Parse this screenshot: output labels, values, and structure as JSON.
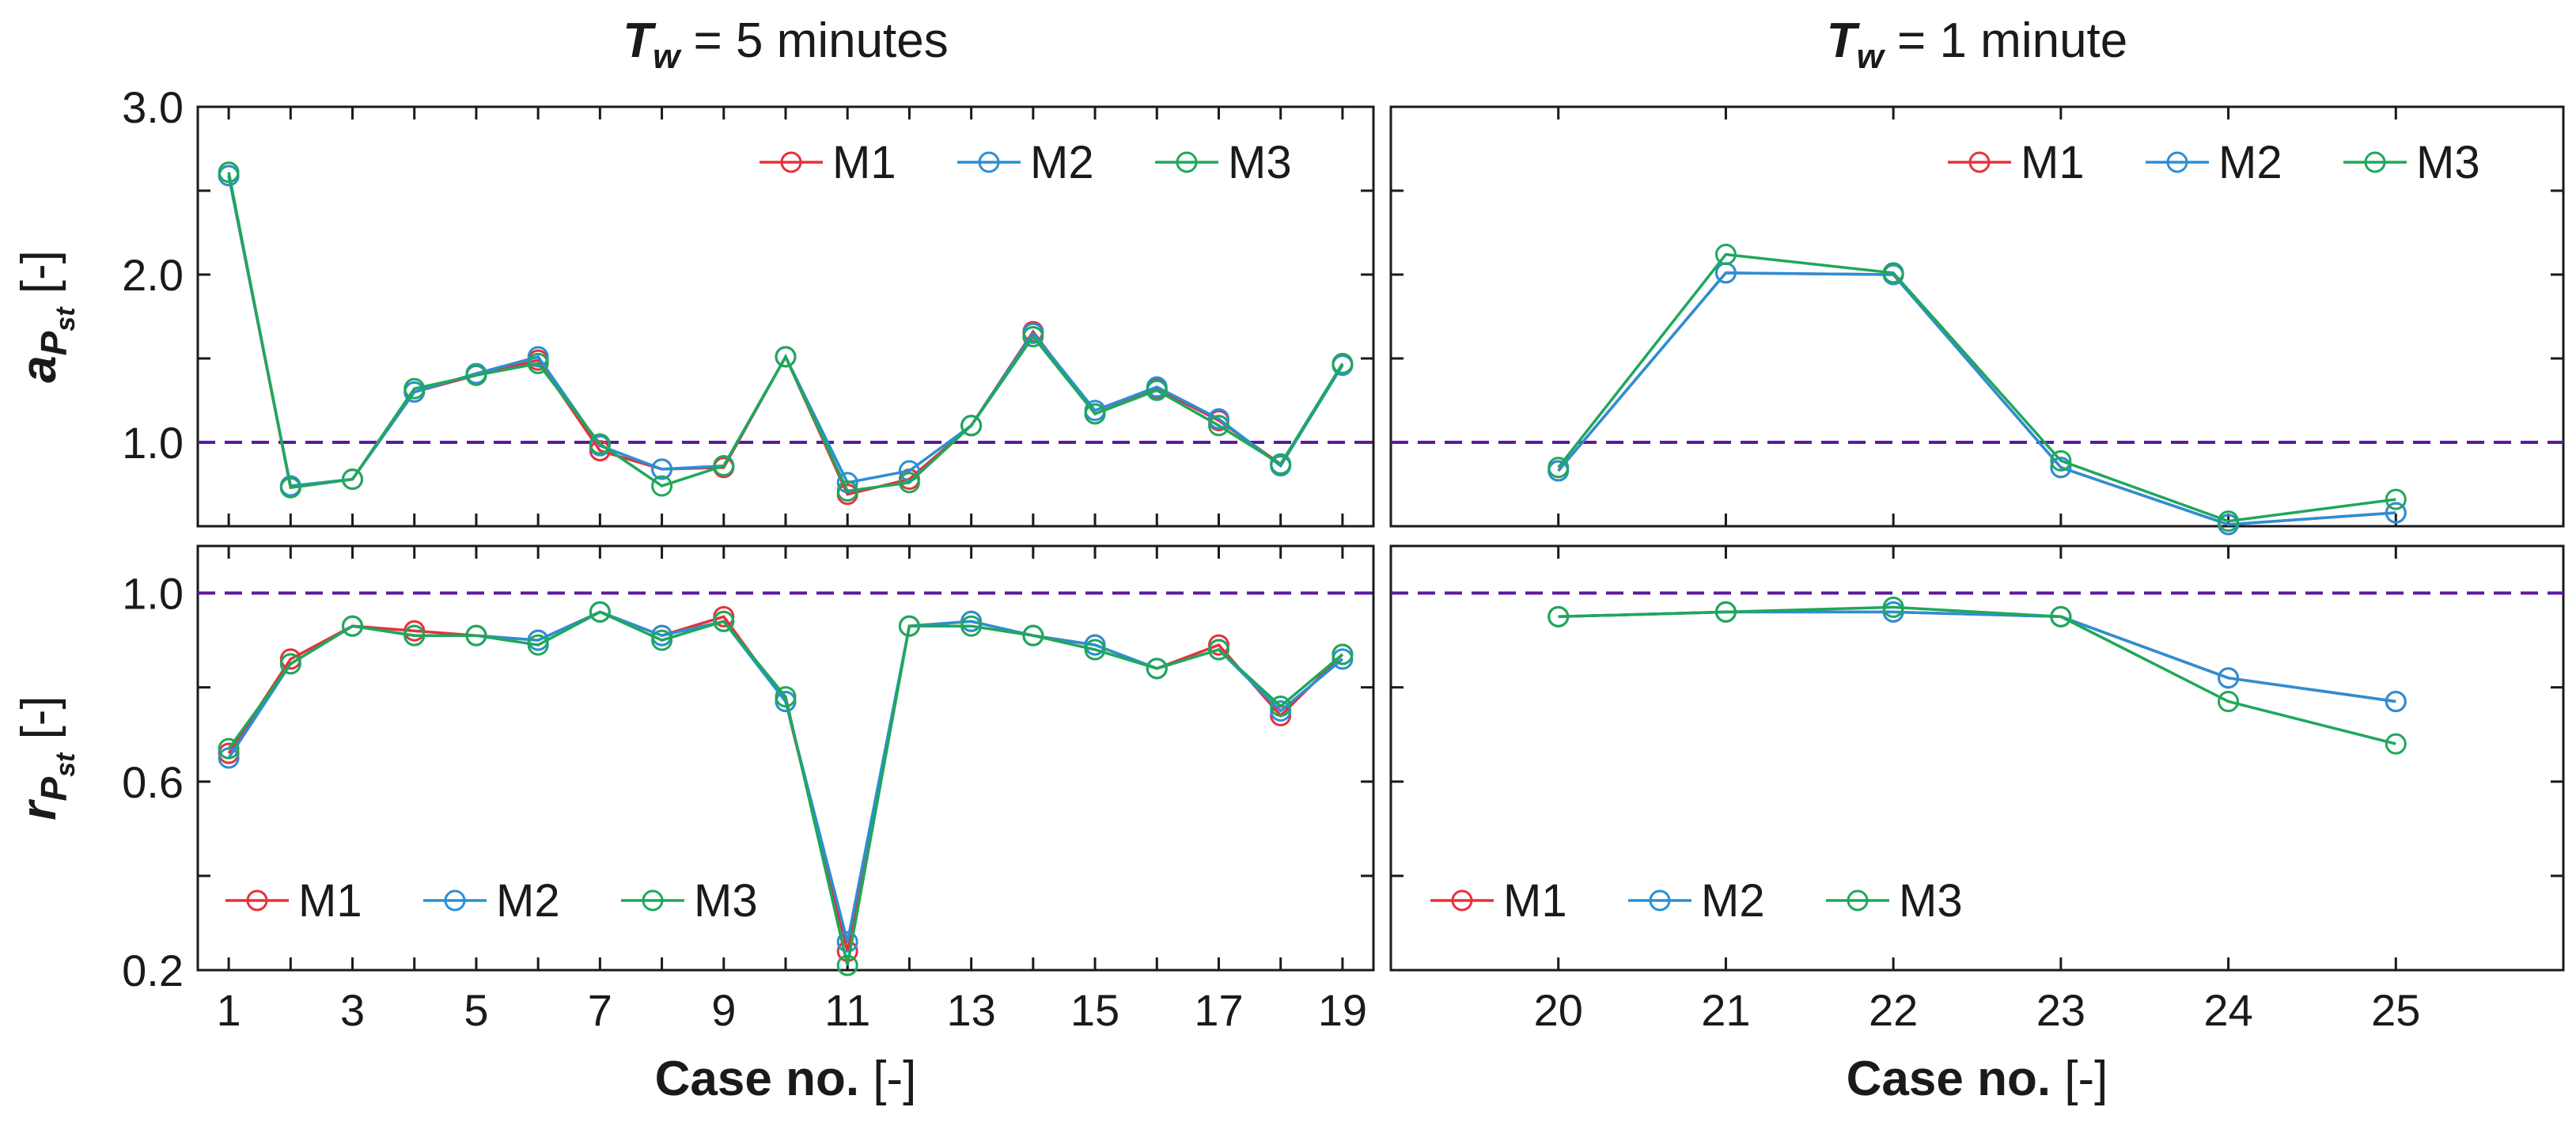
{
  "chart_data": [
    {
      "id": "top-left",
      "type": "line",
      "column_title": {
        "symbol": "T",
        "subscript": "w",
        "text": " = 5 minutes"
      },
      "ylabel": {
        "symbol": "a",
        "sub": "P",
        "subsub": "st",
        "unit": " [-]"
      },
      "xlabel": "",
      "ylim": [
        0.5,
        3.0
      ],
      "xlim": [
        0.5,
        19.5
      ],
      "yticks": [
        1.0,
        2.0,
        3.0
      ],
      "ytick_labels": [
        "1.0",
        "2.0",
        "3.0"
      ],
      "xticks": [
        1,
        2,
        3,
        4,
        5,
        6,
        7,
        8,
        9,
        10,
        11,
        12,
        13,
        14,
        15,
        16,
        17,
        18,
        19
      ],
      "xtick_labels": [],
      "reference_line": 1.0,
      "legend": {
        "placement": "top-right"
      },
      "x": [
        1,
        2,
        3,
        4,
        5,
        6,
        7,
        8,
        9,
        10,
        11,
        12,
        13,
        14,
        15,
        16,
        17,
        18,
        19
      ],
      "series": [
        {
          "name": "M1",
          "color": "#e8303a",
          "values": [
            2.59,
            0.73,
            0.78,
            1.3,
            1.4,
            1.49,
            0.95,
            0.84,
            0.85,
            1.51,
            0.69,
            0.78,
            1.1,
            1.66,
            1.17,
            1.32,
            1.13,
            0.87,
            1.46
          ]
        },
        {
          "name": "M2",
          "color": "#2b8fd6",
          "values": [
            2.59,
            0.74,
            0.78,
            1.3,
            1.41,
            1.51,
            0.98,
            0.84,
            0.86,
            1.51,
            0.76,
            0.83,
            1.1,
            1.65,
            1.19,
            1.33,
            1.14,
            0.86,
            1.46
          ]
        },
        {
          "name": "M3",
          "color": "#1fa85a",
          "values": [
            2.61,
            0.73,
            0.78,
            1.32,
            1.4,
            1.47,
            0.99,
            0.74,
            0.86,
            1.51,
            0.71,
            0.76,
            1.1,
            1.63,
            1.17,
            1.31,
            1.1,
            0.87,
            1.47
          ]
        }
      ]
    },
    {
      "id": "top-right",
      "type": "line",
      "column_title": {
        "symbol": "T",
        "subscript": "w",
        "text": " = 1 minute"
      },
      "xlabel": "",
      "ylim": [
        0.5,
        3.0
      ],
      "xlim": [
        19.0,
        26.0
      ],
      "yticks": [
        1.0,
        2.0,
        3.0
      ],
      "ytick_labels": [],
      "xticks": [
        20,
        21,
        22,
        23,
        24,
        25
      ],
      "xtick_labels": [],
      "reference_line": 1.0,
      "legend": {
        "placement": "top-right"
      },
      "x": [
        20,
        21,
        22,
        23,
        24,
        25
      ],
      "series": [
        {
          "name": "M1",
          "color": "#e8303a",
          "values": [
            0.83,
            2.01,
            2.0,
            0.85,
            0.51,
            0.58
          ]
        },
        {
          "name": "M2",
          "color": "#2b8fd6",
          "values": [
            0.83,
            2.01,
            2.0,
            0.85,
            0.51,
            0.58
          ]
        },
        {
          "name": "M3",
          "color": "#1fa85a",
          "values": [
            0.85,
            2.12,
            2.01,
            0.89,
            0.53,
            0.66
          ]
        }
      ]
    },
    {
      "id": "bottom-left",
      "type": "line",
      "ylabel": {
        "symbol": "r",
        "sub": "P",
        "subsub": "st",
        "unit": " [-]"
      },
      "xlabel": "Case no. [-]",
      "ylim": [
        0.2,
        1.1
      ],
      "xlim": [
        0.5,
        19.5
      ],
      "yticks": [
        0.2,
        0.6,
        1.0
      ],
      "ytick_labels": [
        "0.2",
        "0.6",
        "1.0"
      ],
      "xticks": [
        1,
        2,
        3,
        4,
        5,
        6,
        7,
        8,
        9,
        10,
        11,
        12,
        13,
        14,
        15,
        16,
        17,
        18,
        19
      ],
      "xtick_labels": [
        "1",
        "",
        "3",
        "",
        "5",
        "",
        "7",
        "",
        "9",
        "",
        "11",
        "",
        "13",
        "",
        "15",
        "",
        "17",
        "",
        "19"
      ],
      "reference_line": 1.0,
      "legend": {
        "placement": "bottom-left"
      },
      "x": [
        1,
        2,
        3,
        4,
        5,
        6,
        7,
        8,
        9,
        10,
        11,
        12,
        13,
        14,
        15,
        16,
        17,
        18,
        19
      ],
      "series": [
        {
          "name": "M1",
          "color": "#e8303a",
          "values": [
            0.66,
            0.86,
            0.93,
            0.92,
            0.91,
            0.9,
            0.96,
            0.91,
            0.95,
            0.77,
            0.24,
            0.93,
            0.94,
            0.91,
            0.89,
            0.84,
            0.89,
            0.74,
            0.87
          ]
        },
        {
          "name": "M2",
          "color": "#2b8fd6",
          "values": [
            0.65,
            0.85,
            0.93,
            0.91,
            0.91,
            0.9,
            0.96,
            0.91,
            0.94,
            0.77,
            0.26,
            0.93,
            0.94,
            0.91,
            0.89,
            0.84,
            0.88,
            0.75,
            0.86
          ]
        },
        {
          "name": "M3",
          "color": "#1fa85a",
          "values": [
            0.67,
            0.85,
            0.93,
            0.91,
            0.91,
            0.89,
            0.96,
            0.9,
            0.94,
            0.78,
            0.21,
            0.93,
            0.93,
            0.91,
            0.88,
            0.84,
            0.88,
            0.76,
            0.87
          ]
        }
      ]
    },
    {
      "id": "bottom-right",
      "type": "line",
      "xlabel": "Case no. [-]",
      "ylim": [
        0.2,
        1.1
      ],
      "xlim": [
        19.0,
        26.0
      ],
      "yticks": [
        0.2,
        0.6,
        1.0
      ],
      "ytick_labels": [],
      "xticks": [
        20,
        21,
        22,
        23,
        24,
        25
      ],
      "xtick_labels": [
        "20",
        "21",
        "22",
        "23",
        "24",
        "25"
      ],
      "reference_line": 1.0,
      "legend": {
        "placement": "bottom-left"
      },
      "x": [
        20,
        21,
        22,
        23,
        24,
        25
      ],
      "series": [
        {
          "name": "M1",
          "color": "#e8303a",
          "values": [
            0.95,
            0.96,
            0.96,
            0.95,
            0.82,
            0.77
          ]
        },
        {
          "name": "M2",
          "color": "#2b8fd6",
          "values": [
            0.95,
            0.96,
            0.96,
            0.95,
            0.82,
            0.77
          ]
        },
        {
          "name": "M3",
          "color": "#1fa85a",
          "values": [
            0.95,
            0.96,
            0.97,
            0.95,
            0.77,
            0.68
          ]
        }
      ]
    }
  ],
  "reference_line_color": "#5b1a9c"
}
